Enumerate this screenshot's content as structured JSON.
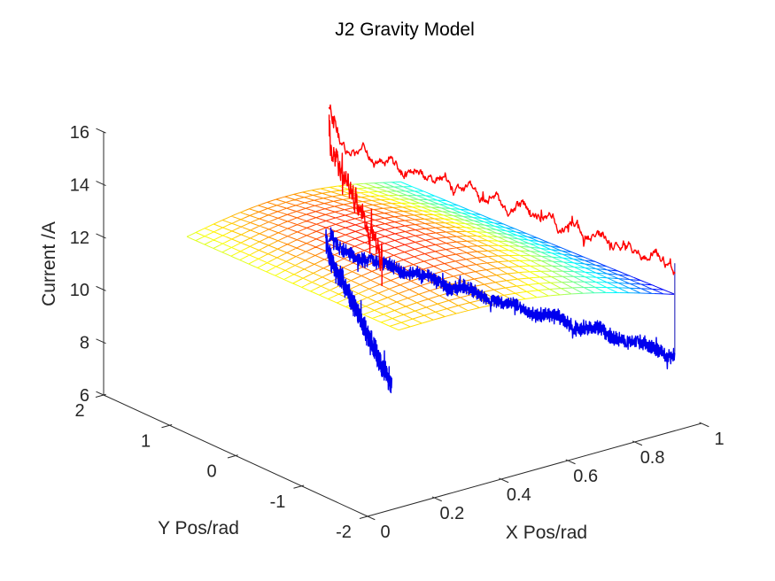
{
  "title": "J2 Gravity Model",
  "axes": {
    "x": {
      "label": "X Pos/rad",
      "min": 0,
      "max": 1,
      "ticks": [
        0,
        0.2,
        0.4,
        0.6,
        0.8,
        1
      ],
      "tick_labels": [
        "0",
        "0.2",
        "0.4",
        "0.6",
        "0.8",
        "1"
      ]
    },
    "y": {
      "label": "Y Pos/rad",
      "min": -2,
      "max": 2,
      "ticks": [
        2,
        1,
        0,
        -1,
        -2
      ],
      "tick_labels": [
        "2",
        "1",
        "0",
        "-1",
        "-2"
      ]
    },
    "z": {
      "label": "Current /A",
      "min": 6,
      "max": 16,
      "ticks": [
        16,
        14,
        12,
        10,
        8,
        6
      ],
      "tick_labels": [
        "16",
        "14",
        "12",
        "10",
        "8",
        "6"
      ]
    }
  },
  "style": {
    "background": "#ffffff",
    "axis_color": "#2a2a2a",
    "text_color": "#262626",
    "red_line": "#ff0000",
    "blue_line": "#0000ee",
    "drop_line": "#5e5ecd"
  },
  "chart_data": {
    "type": "line",
    "subtype": "3d-lines-with-model-mesh",
    "title": "J2 Gravity Model",
    "xlabel": "X Pos/rad",
    "ylabel": "Y Pos/rad",
    "zlabel": "Current /A",
    "xlim": [
      0,
      1
    ],
    "ylim": [
      -2,
      2
    ],
    "zlim": [
      6,
      16
    ],
    "grid": false,
    "surface": {
      "name": "fitted-current-model-mesh",
      "colormap": "jet",
      "grid_divisions": 24,
      "corners": {
        "near_left": {
          "x": 0.2,
          "y": -1.46,
          "z": 11.75
        },
        "near_right": {
          "x": 1.0,
          "y": -1.6,
          "z": 10.44
        },
        "far_left": {
          "x": 0.2,
          "y": 1.75,
          "z": 11.6
        },
        "far_right": {
          "x": 0.87,
          "y": 1.9,
          "z": 11.14
        }
      },
      "dome_height": 0.95,
      "color_range": [
        10.2,
        12.6
      ]
    },
    "series": [
      {
        "name": "measured-current-upper",
        "color": "#ff0000",
        "width": 1.4,
        "segments": [
          {
            "kind": "sweep-y",
            "seed": 7,
            "points": 230,
            "noise": 0.42,
            "noise_style": "walk",
            "start_spike": 1.4,
            "from": {
              "x": 0.28,
              "y": 0.0,
              "z": 16.9
            },
            "to": {
              "x": 0.28,
              "y": -0.8,
              "z": 13.4
            },
            "tail_to": {
              "x": 0.28,
              "y": -0.8,
              "z": 12.4
            }
          },
          {
            "kind": "sweep-x",
            "seed": 13,
            "points": 540,
            "noise": 0.17,
            "noise_style": "walk",
            "start_spike": 1.2,
            "humps": 13,
            "hump_amp": 0.22,
            "from": {
              "x": 0.28,
              "y": 0.0,
              "z": 16.9
            },
            "to": {
              "x": 0.92,
              "y": -2.0,
              "z": 12.35
            }
          }
        ]
      },
      {
        "name": "measured-current-lower",
        "color": "#0000ee",
        "width": 1.4,
        "segments": [
          {
            "kind": "sweep-y",
            "seed": 21,
            "points": 250,
            "noise": 0.3,
            "noise_style": "hash",
            "start_spike": 0.5,
            "from": {
              "x": 0.28,
              "y": 0.05,
              "z": 12.85
            },
            "to": {
              "x": 0.28,
              "y": -0.95,
              "z": 8.75
            }
          },
          {
            "kind": "sweep-x",
            "seed": 29,
            "points": 600,
            "noise": 0.2,
            "noise_style": "hash",
            "start_spike": 0.55,
            "humps": 8,
            "hump_amp": 0.12,
            "from": {
              "x": 0.28,
              "y": 0.0,
              "z": 12.9
            },
            "to": {
              "x": 0.92,
              "y": -2.0,
              "z": 8.9
            }
          }
        ]
      },
      {
        "name": "end-drop-line",
        "color": "#5e5ecd",
        "width": 1.5,
        "segments": [
          {
            "kind": "line",
            "seed": 1,
            "points": 2,
            "noise": 0,
            "noise_style": "walk",
            "from": {
              "x": 0.92,
              "y": -2.0,
              "z": 12.35
            },
            "to": {
              "x": 0.92,
              "y": -2.0,
              "z": 9.0
            }
          }
        ]
      }
    ]
  }
}
